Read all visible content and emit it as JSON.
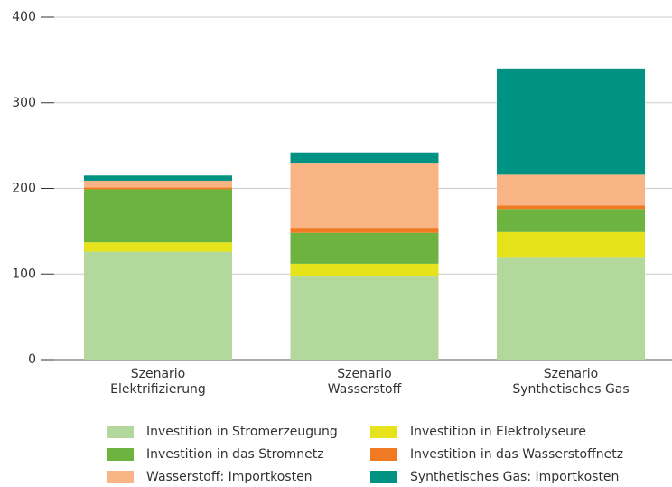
{
  "chart_data": {
    "type": "stacked_bar",
    "categories": [
      "Szenario\nElektrifizierung",
      "Szenario\nWasserstoff",
      "Szenario\nSynthetisches Gas"
    ],
    "series": [
      {
        "name": "Investition in Stromerzeugung",
        "color": "#b3d89b",
        "values": [
          126,
          97,
          120
        ]
      },
      {
        "name": "Investition in Elektrolyseure",
        "color": "#e6e31c",
        "values": [
          11,
          15,
          29
        ]
      },
      {
        "name": "Investition in das Stromnetz",
        "color": "#6db33f",
        "values": [
          62,
          36,
          27
        ]
      },
      {
        "name": "Investition in das Wasserstoffnetz",
        "color": "#f07a22",
        "values": [
          2,
          6,
          4
        ]
      },
      {
        "name": "Wasserstoff: Importkosten",
        "color": "#f8b485",
        "values": [
          8,
          76,
          36
        ]
      },
      {
        "name": "Synthetisches Gas: Importkosten",
        "color": "#009384",
        "values": [
          6,
          12,
          124
        ]
      }
    ],
    "ylim": [
      0,
      400
    ],
    "yticks": [
      0,
      100,
      200,
      300,
      400
    ],
    "grid": true
  }
}
